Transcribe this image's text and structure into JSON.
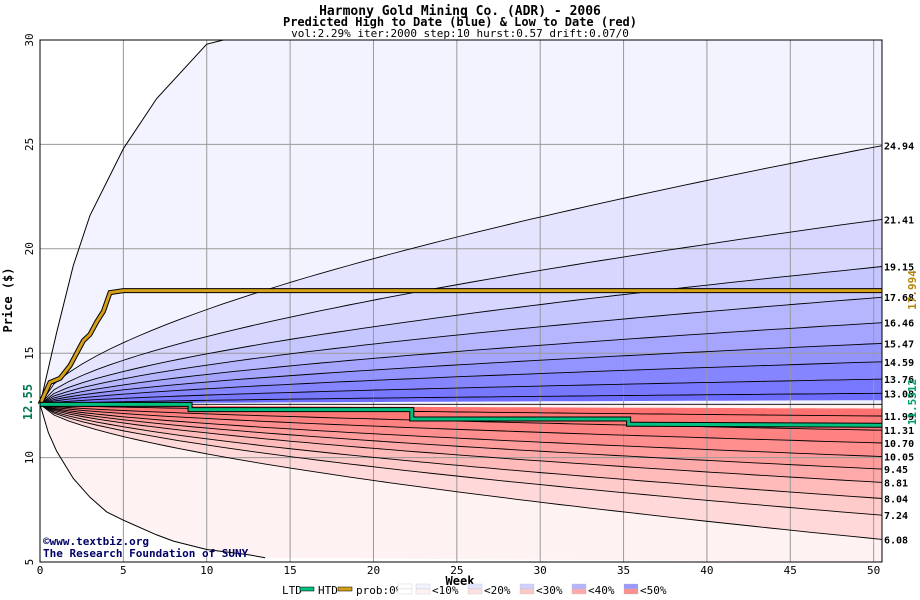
{
  "chart_data": {
    "type": "area",
    "title": "Harmony Gold Mining Co. (ADR) - 2006",
    "subtitle": "Predicted High to Date (blue) &  Low to Date (red)",
    "params": "vol:2.29% iter:2000 step:10 hurst:0.57 drift:0.07/0",
    "xlabel": "Week",
    "ylabel": "Price ($)",
    "xlim": [
      0,
      50.5
    ],
    "ylim": [
      5,
      30
    ],
    "x_ticks": [
      0,
      5,
      10,
      15,
      20,
      25,
      30,
      35,
      40,
      45,
      50
    ],
    "y_ticks": [
      5,
      10,
      15,
      20,
      25,
      30
    ],
    "grid": true,
    "start_price": 12.55,
    "start_price_label": "12.55",
    "upper_percentiles": [
      {
        "end": 24.94,
        "label": "24.94"
      },
      {
        "end": 21.41,
        "label": "21.41"
      },
      {
        "end": 19.15,
        "label": "19.15"
      },
      {
        "end": 17.68,
        "label": "17.68"
      },
      {
        "end": 16.46,
        "label": "16.46"
      },
      {
        "end": 15.47,
        "label": "15.47"
      },
      {
        "end": 14.59,
        "label": "14.59"
      },
      {
        "end": 13.76,
        "label": "13.76"
      },
      {
        "end": 13.08,
        "label": "13.08"
      }
    ],
    "lower_percentiles": [
      {
        "end": 11.99,
        "label": "11.99"
      },
      {
        "end": 11.31,
        "label": "11.31"
      },
      {
        "end": 10.7,
        "label": "10.70"
      },
      {
        "end": 10.05,
        "label": "10.05"
      },
      {
        "end": 9.45,
        "label": "9.45"
      },
      {
        "end": 8.81,
        "label": "8.81"
      },
      {
        "end": 8.04,
        "label": "8.04"
      },
      {
        "end": 7.24,
        "label": "7.24"
      },
      {
        "end": 6.08,
        "label": "6.08"
      }
    ],
    "outer_upper": [
      [
        0,
        12.55
      ],
      [
        1,
        16
      ],
      [
        2,
        19.2
      ],
      [
        3,
        21.6
      ],
      [
        5,
        24.8
      ],
      [
        7,
        27.2
      ],
      [
        10,
        29.8
      ],
      [
        11,
        30
      ]
    ],
    "outer_lower": [
      [
        0,
        12.55
      ],
      [
        0.5,
        11.2
      ],
      [
        1,
        10.3
      ],
      [
        2,
        9.0
      ],
      [
        3,
        8.1
      ],
      [
        4,
        7.4
      ],
      [
        5,
        7.0
      ],
      [
        7,
        6.3
      ],
      [
        8,
        6.0
      ],
      [
        10,
        5.6
      ],
      [
        12.5,
        5.35
      ],
      [
        13.5,
        5.2
      ]
    ],
    "htd_line": {
      "name": "HTD",
      "color": "#d4a017",
      "end_label": "17.994",
      "points": [
        [
          0,
          12.55
        ],
        [
          0.6,
          13.6
        ],
        [
          1.2,
          13.8
        ],
        [
          1.8,
          14.4
        ],
        [
          2.2,
          15.0
        ],
        [
          2.6,
          15.6
        ],
        [
          3.0,
          15.9
        ],
        [
          3.4,
          16.5
        ],
        [
          3.8,
          17.0
        ],
        [
          4.2,
          17.9
        ],
        [
          5,
          18.0
        ],
        [
          50.5,
          18.0
        ]
      ]
    },
    "ltd_line": {
      "name": "LTD",
      "color": "#00c080",
      "end_label": "11.5312",
      "points": [
        [
          0,
          12.55
        ],
        [
          9,
          12.55
        ],
        [
          9,
          12.3
        ],
        [
          22.3,
          12.3
        ],
        [
          22.3,
          11.85
        ],
        [
          35.3,
          11.85
        ],
        [
          35.3,
          11.6
        ],
        [
          50.5,
          11.55
        ]
      ]
    },
    "legend": [
      "LTD",
      "HTD",
      "prob:0%",
      "<10%",
      "<20%",
      "<30%",
      "<40%",
      "<50%"
    ],
    "legend_colors": {
      "upper": [
        "#ffffff",
        "#f3f3ff",
        "#e4e4ff",
        "#d0d0ff",
        "#b5b5ff",
        "#9999ff"
      ],
      "lower": [
        "#ffffff",
        "#fff2f2",
        "#ffe0e0",
        "#ffc8c8",
        "#ffaaaa",
        "#ff8e8e"
      ]
    },
    "credit_1": "www.textbiz.org",
    "credit_2": "The Research Foundation of SUNY"
  }
}
